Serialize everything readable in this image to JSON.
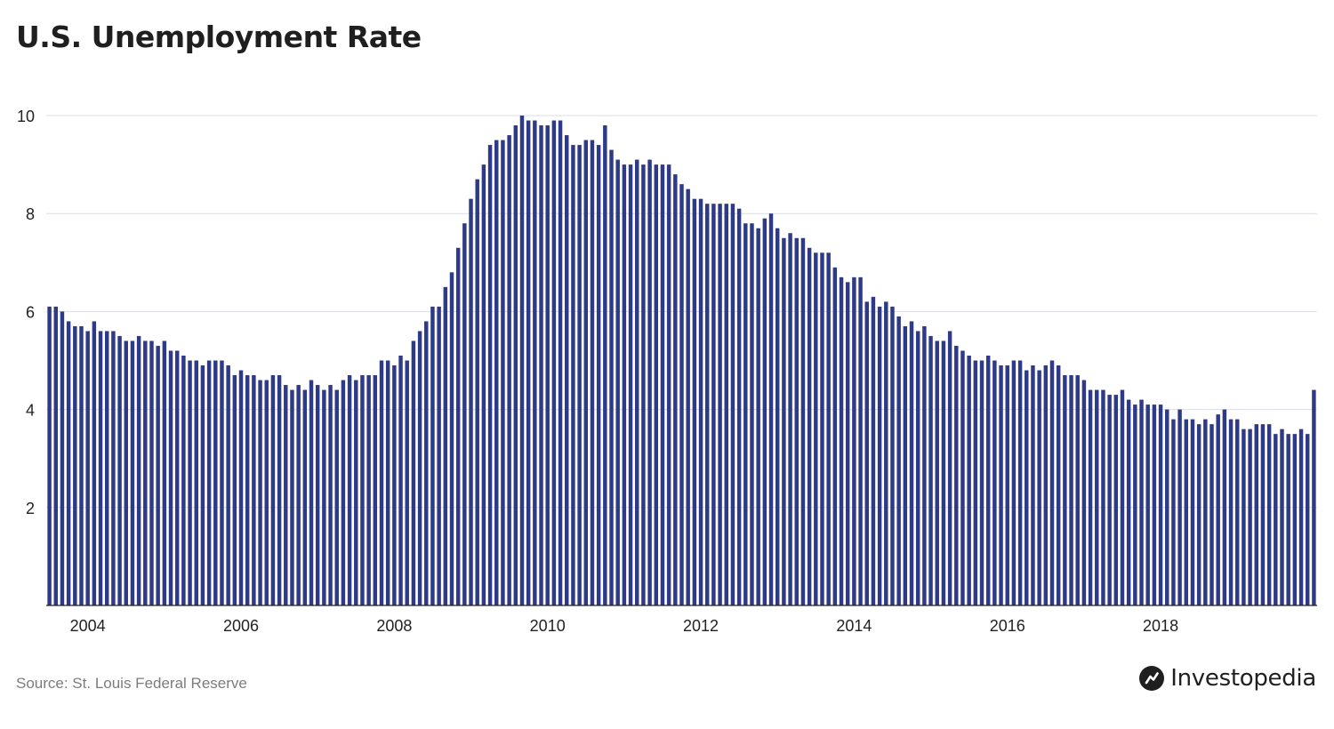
{
  "header": {
    "title": "U.S. Unemployment Rate"
  },
  "footer": {
    "source": "Source: St. Louis Federal Reserve",
    "brand": "Investopedia"
  },
  "colors": {
    "bar": "#2e3a87",
    "grid": "#d9dde6",
    "axis": "#222222",
    "text": "#222222"
  },
  "icons": {
    "brand_logo": "investopedia-logo-icon"
  },
  "chart_data": {
    "type": "bar",
    "title": "U.S. Unemployment Rate",
    "xlabel": "",
    "ylabel": "",
    "start": "2003-07",
    "frequency": "monthly",
    "ylim": [
      0,
      10
    ],
    "yticks": [
      2,
      4,
      6,
      8,
      10
    ],
    "xticks": [
      "2004",
      "2006",
      "2008",
      "2010",
      "2012",
      "2014",
      "2016",
      "2018"
    ],
    "grid": true,
    "legend": "none",
    "values": [
      6.1,
      6.1,
      6.0,
      5.8,
      5.7,
      5.7,
      5.6,
      5.8,
      5.6,
      5.6,
      5.6,
      5.5,
      5.4,
      5.4,
      5.5,
      5.4,
      5.4,
      5.3,
      5.4,
      5.2,
      5.2,
      5.1,
      5.0,
      5.0,
      4.9,
      5.0,
      5.0,
      5.0,
      4.9,
      4.7,
      4.8,
      4.7,
      4.7,
      4.6,
      4.6,
      4.7,
      4.7,
      4.5,
      4.4,
      4.5,
      4.4,
      4.6,
      4.5,
      4.4,
      4.5,
      4.4,
      4.6,
      4.7,
      4.6,
      4.7,
      4.7,
      4.7,
      5.0,
      5.0,
      4.9,
      5.1,
      5.0,
      5.4,
      5.6,
      5.8,
      6.1,
      6.1,
      6.5,
      6.8,
      7.3,
      7.8,
      8.3,
      8.7,
      9.0,
      9.4,
      9.5,
      9.5,
      9.6,
      9.8,
      10.0,
      9.9,
      9.9,
      9.8,
      9.8,
      9.9,
      9.9,
      9.6,
      9.4,
      9.4,
      9.5,
      9.5,
      9.4,
      9.8,
      9.3,
      9.1,
      9.0,
      9.0,
      9.1,
      9.0,
      9.1,
      9.0,
      9.0,
      9.0,
      8.8,
      8.6,
      8.5,
      8.3,
      8.3,
      8.2,
      8.2,
      8.2,
      8.2,
      8.2,
      8.1,
      7.8,
      7.8,
      7.7,
      7.9,
      8.0,
      7.7,
      7.5,
      7.6,
      7.5,
      7.5,
      7.3,
      7.2,
      7.2,
      7.2,
      6.9,
      6.7,
      6.6,
      6.7,
      6.7,
      6.2,
      6.3,
      6.1,
      6.2,
      6.1,
      5.9,
      5.7,
      5.8,
      5.6,
      5.7,
      5.5,
      5.4,
      5.4,
      5.6,
      5.3,
      5.2,
      5.1,
      5.0,
      5.0,
      5.1,
      5.0,
      4.9,
      4.9,
      5.0,
      5.0,
      4.8,
      4.9,
      4.8,
      4.9,
      5.0,
      4.9,
      4.7,
      4.7,
      4.7,
      4.6,
      4.4,
      4.4,
      4.4,
      4.3,
      4.3,
      4.4,
      4.2,
      4.1,
      4.2,
      4.1,
      4.1,
      4.1,
      4.0,
      3.8,
      4.0,
      3.8,
      3.8,
      3.7,
      3.8,
      3.7,
      3.9,
      4.0,
      3.8,
      3.8,
      3.6,
      3.6,
      3.7,
      3.7,
      3.7,
      3.5,
      3.6,
      3.5,
      3.5,
      3.6,
      3.5,
      4.4
    ]
  }
}
